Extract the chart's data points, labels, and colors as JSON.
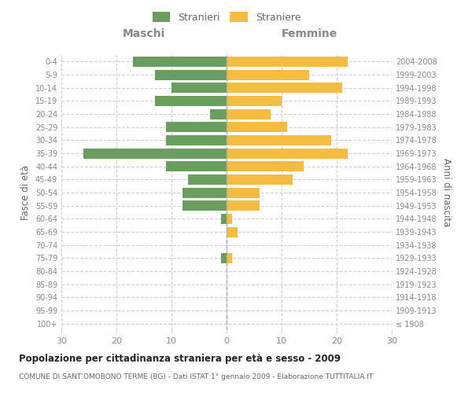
{
  "age_groups": [
    "100+",
    "95-99",
    "90-94",
    "85-89",
    "80-84",
    "75-79",
    "70-74",
    "65-69",
    "60-64",
    "55-59",
    "50-54",
    "45-49",
    "40-44",
    "35-39",
    "30-34",
    "25-29",
    "20-24",
    "15-19",
    "10-14",
    "5-9",
    "0-4"
  ],
  "birth_years": [
    "≤ 1908",
    "1909-1913",
    "1914-1918",
    "1919-1923",
    "1924-1928",
    "1929-1933",
    "1934-1938",
    "1939-1943",
    "1944-1948",
    "1949-1953",
    "1954-1958",
    "1959-1963",
    "1964-1968",
    "1969-1973",
    "1974-1978",
    "1979-1983",
    "1984-1988",
    "1989-1993",
    "1994-1998",
    "1999-2003",
    "2004-2008"
  ],
  "males": [
    0,
    0,
    0,
    0,
    0,
    1,
    0,
    0,
    1,
    8,
    8,
    7,
    11,
    26,
    11,
    11,
    3,
    13,
    10,
    13,
    17
  ],
  "females": [
    0,
    0,
    0,
    0,
    0,
    1,
    0,
    2,
    1,
    6,
    6,
    12,
    14,
    22,
    19,
    11,
    8,
    10,
    21,
    15,
    22
  ],
  "male_color": "#6a9e5f",
  "female_color": "#f5bc42",
  "background_color": "#ffffff",
  "grid_color": "#d0d0d0",
  "title": "Popolazione per cittadinanza straniera per età e sesso - 2009",
  "subtitle": "COMUNE DI SANT’OMOBONO TERME (BG) - Dati ISTAT 1° gennaio 2009 - Elaborazione TUTTITALIA.IT",
  "xlabel_left": "Maschi",
  "xlabel_right": "Femmine",
  "ylabel_left": "Fasce di età",
  "ylabel_right": "Anni di nascita",
  "xlim": 30,
  "legend_males": "Stranieri",
  "legend_females": "Straniere",
  "tick_color": "#888888",
  "label_color": "#666666",
  "header_color": "#888888"
}
